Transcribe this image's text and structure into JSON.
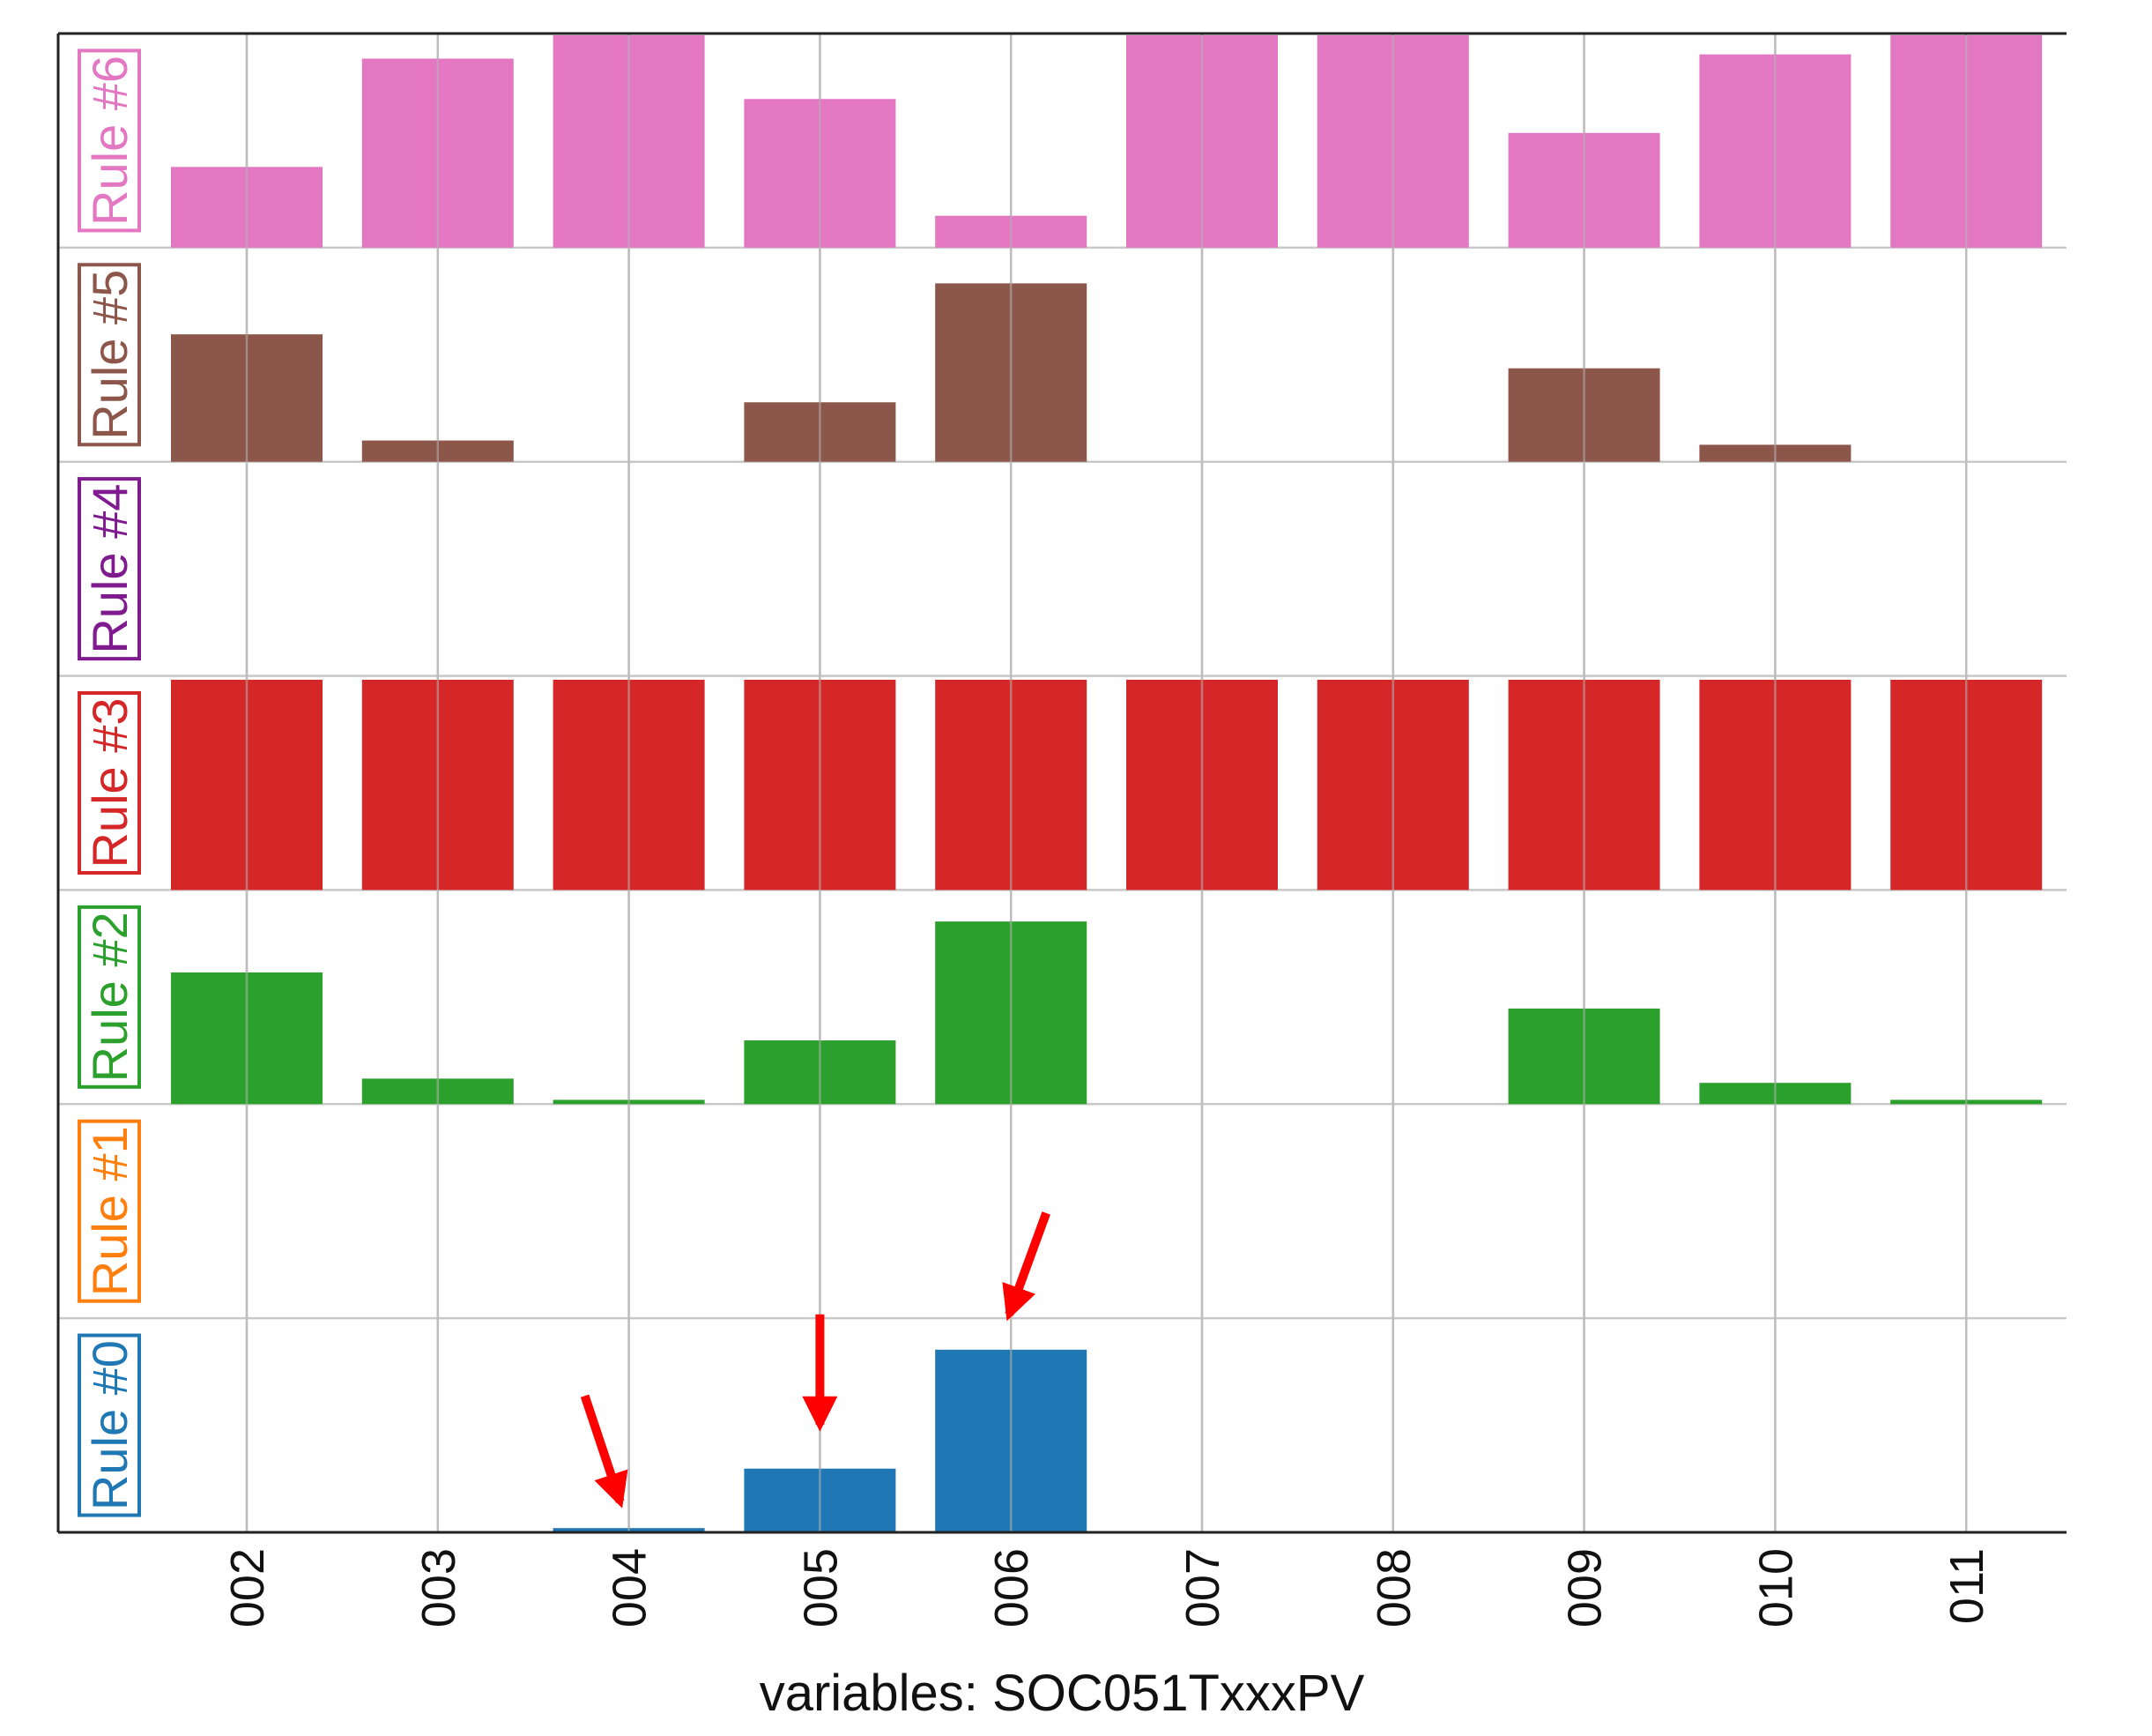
{
  "chart_data": {
    "type": "bar",
    "layout": "stacked-panels",
    "categories": [
      "002",
      "003",
      "004",
      "005",
      "006",
      "007",
      "008",
      "009",
      "010",
      "011"
    ],
    "xlabel": "variables: SOC051TxxxPV",
    "ylim": [
      0,
      1
    ],
    "grid": true,
    "series": [
      {
        "name": "Rule #6",
        "color": "#e377c2",
        "values": [
          0.38,
          0.89,
          1.0,
          0.7,
          0.15,
          1.0,
          1.0,
          0.54,
          0.91,
          1.0
        ]
      },
      {
        "name": "Rule #5",
        "color": "#8c564b",
        "values": [
          0.6,
          0.1,
          0.0,
          0.28,
          0.84,
          0.0,
          0.0,
          0.44,
          0.08,
          0.0
        ]
      },
      {
        "name": "Rule #4",
        "color": "#7f1a8f",
        "values": [
          0,
          0,
          0,
          0,
          0,
          0,
          0,
          0,
          0,
          0
        ]
      },
      {
        "name": "Rule #3",
        "color": "#d62728",
        "values": [
          0.99,
          0.99,
          0.99,
          0.99,
          0.99,
          0.99,
          0.99,
          0.99,
          0.99,
          0.99
        ]
      },
      {
        "name": "Rule #2",
        "color": "#2ca02c",
        "values": [
          0.62,
          0.12,
          0.02,
          0.3,
          0.86,
          0.0,
          0.0,
          0.45,
          0.1,
          0.02
        ]
      },
      {
        "name": "Rule #1",
        "color": "#ff7f0e",
        "values": [
          0,
          0,
          0,
          0,
          0,
          0,
          0,
          0,
          0,
          0
        ]
      },
      {
        "name": "Rule #0",
        "color": "#1f77b4",
        "values": [
          0.0,
          0.0,
          0.02,
          0.3,
          0.86,
          0.0,
          0.0,
          0.0,
          0.0,
          0.0
        ]
      }
    ],
    "annotations": [
      {
        "type": "arrow",
        "color": "#ff0000",
        "target_series": "Rule #0",
        "target_category": "004"
      },
      {
        "type": "arrow",
        "color": "#ff0000",
        "target_series": "Rule #0",
        "target_category": "005"
      },
      {
        "type": "arrow",
        "color": "#ff0000",
        "target_series": "Rule #0",
        "target_category": "006"
      }
    ]
  }
}
